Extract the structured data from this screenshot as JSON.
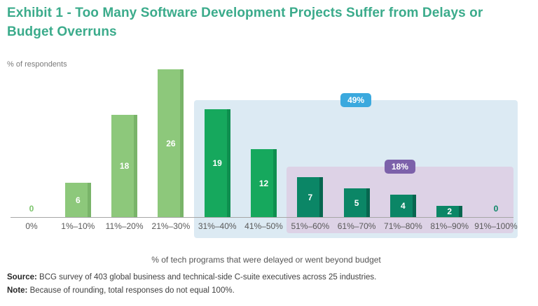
{
  "header": {
    "title": "Exhibit 1 - Too Many Software Development Projects Suffer from Delays or Budget Overruns",
    "title_color": "#3BAB8B"
  },
  "chart_data": {
    "type": "bar",
    "title": "Exhibit 1 - Too Many Software Development Projects Suffer from Delays or Budget Overruns",
    "ylabel": "% of respondents",
    "xlabel": "% of tech programs that were delayed or went beyond budget",
    "categories": [
      "0%",
      "1%–10%",
      "11%–20%",
      "21%–30%",
      "31%–40%",
      "41%–50%",
      "51%–60%",
      "61%–70%",
      "71%–80%",
      "81%–90%",
      "91%–100%"
    ],
    "values": [
      0,
      6,
      18,
      26,
      19,
      12,
      7,
      5,
      4,
      2,
      0
    ],
    "ylim": [
      0,
      27
    ],
    "grid": false,
    "legend": "none",
    "bar_color_segments": [
      {
        "range": [
          0,
          3
        ],
        "fill": "#8DC87B",
        "edge": "#79B469"
      },
      {
        "range": [
          4,
          5
        ],
        "fill": "#16A85D",
        "edge": "#0E8F4F"
      },
      {
        "range": [
          6,
          10
        ],
        "fill": "#0B8666",
        "edge": "#07664F"
      }
    ],
    "zero_label_colors": {
      "0": "#7CC46C",
      "10": "#0B8666"
    },
    "annotations": [
      {
        "label": "49%",
        "badge_color": "#3BA9DE",
        "region_color": "#DCEAF3",
        "from_category": 4,
        "to_category": 10
      },
      {
        "label": "18%",
        "badge_color": "#7C61AA",
        "region_color": "#DDD2E6",
        "from_category": 6,
        "to_category": 10
      }
    ]
  },
  "footer": {
    "source_label": "Source:",
    "source_text": " BCG survey of 403 global business and technical-side C-suite executives across 25 industries.",
    "note_label": "Note:",
    "note_text": " Because of rounding, total responses do not equal 100%."
  }
}
